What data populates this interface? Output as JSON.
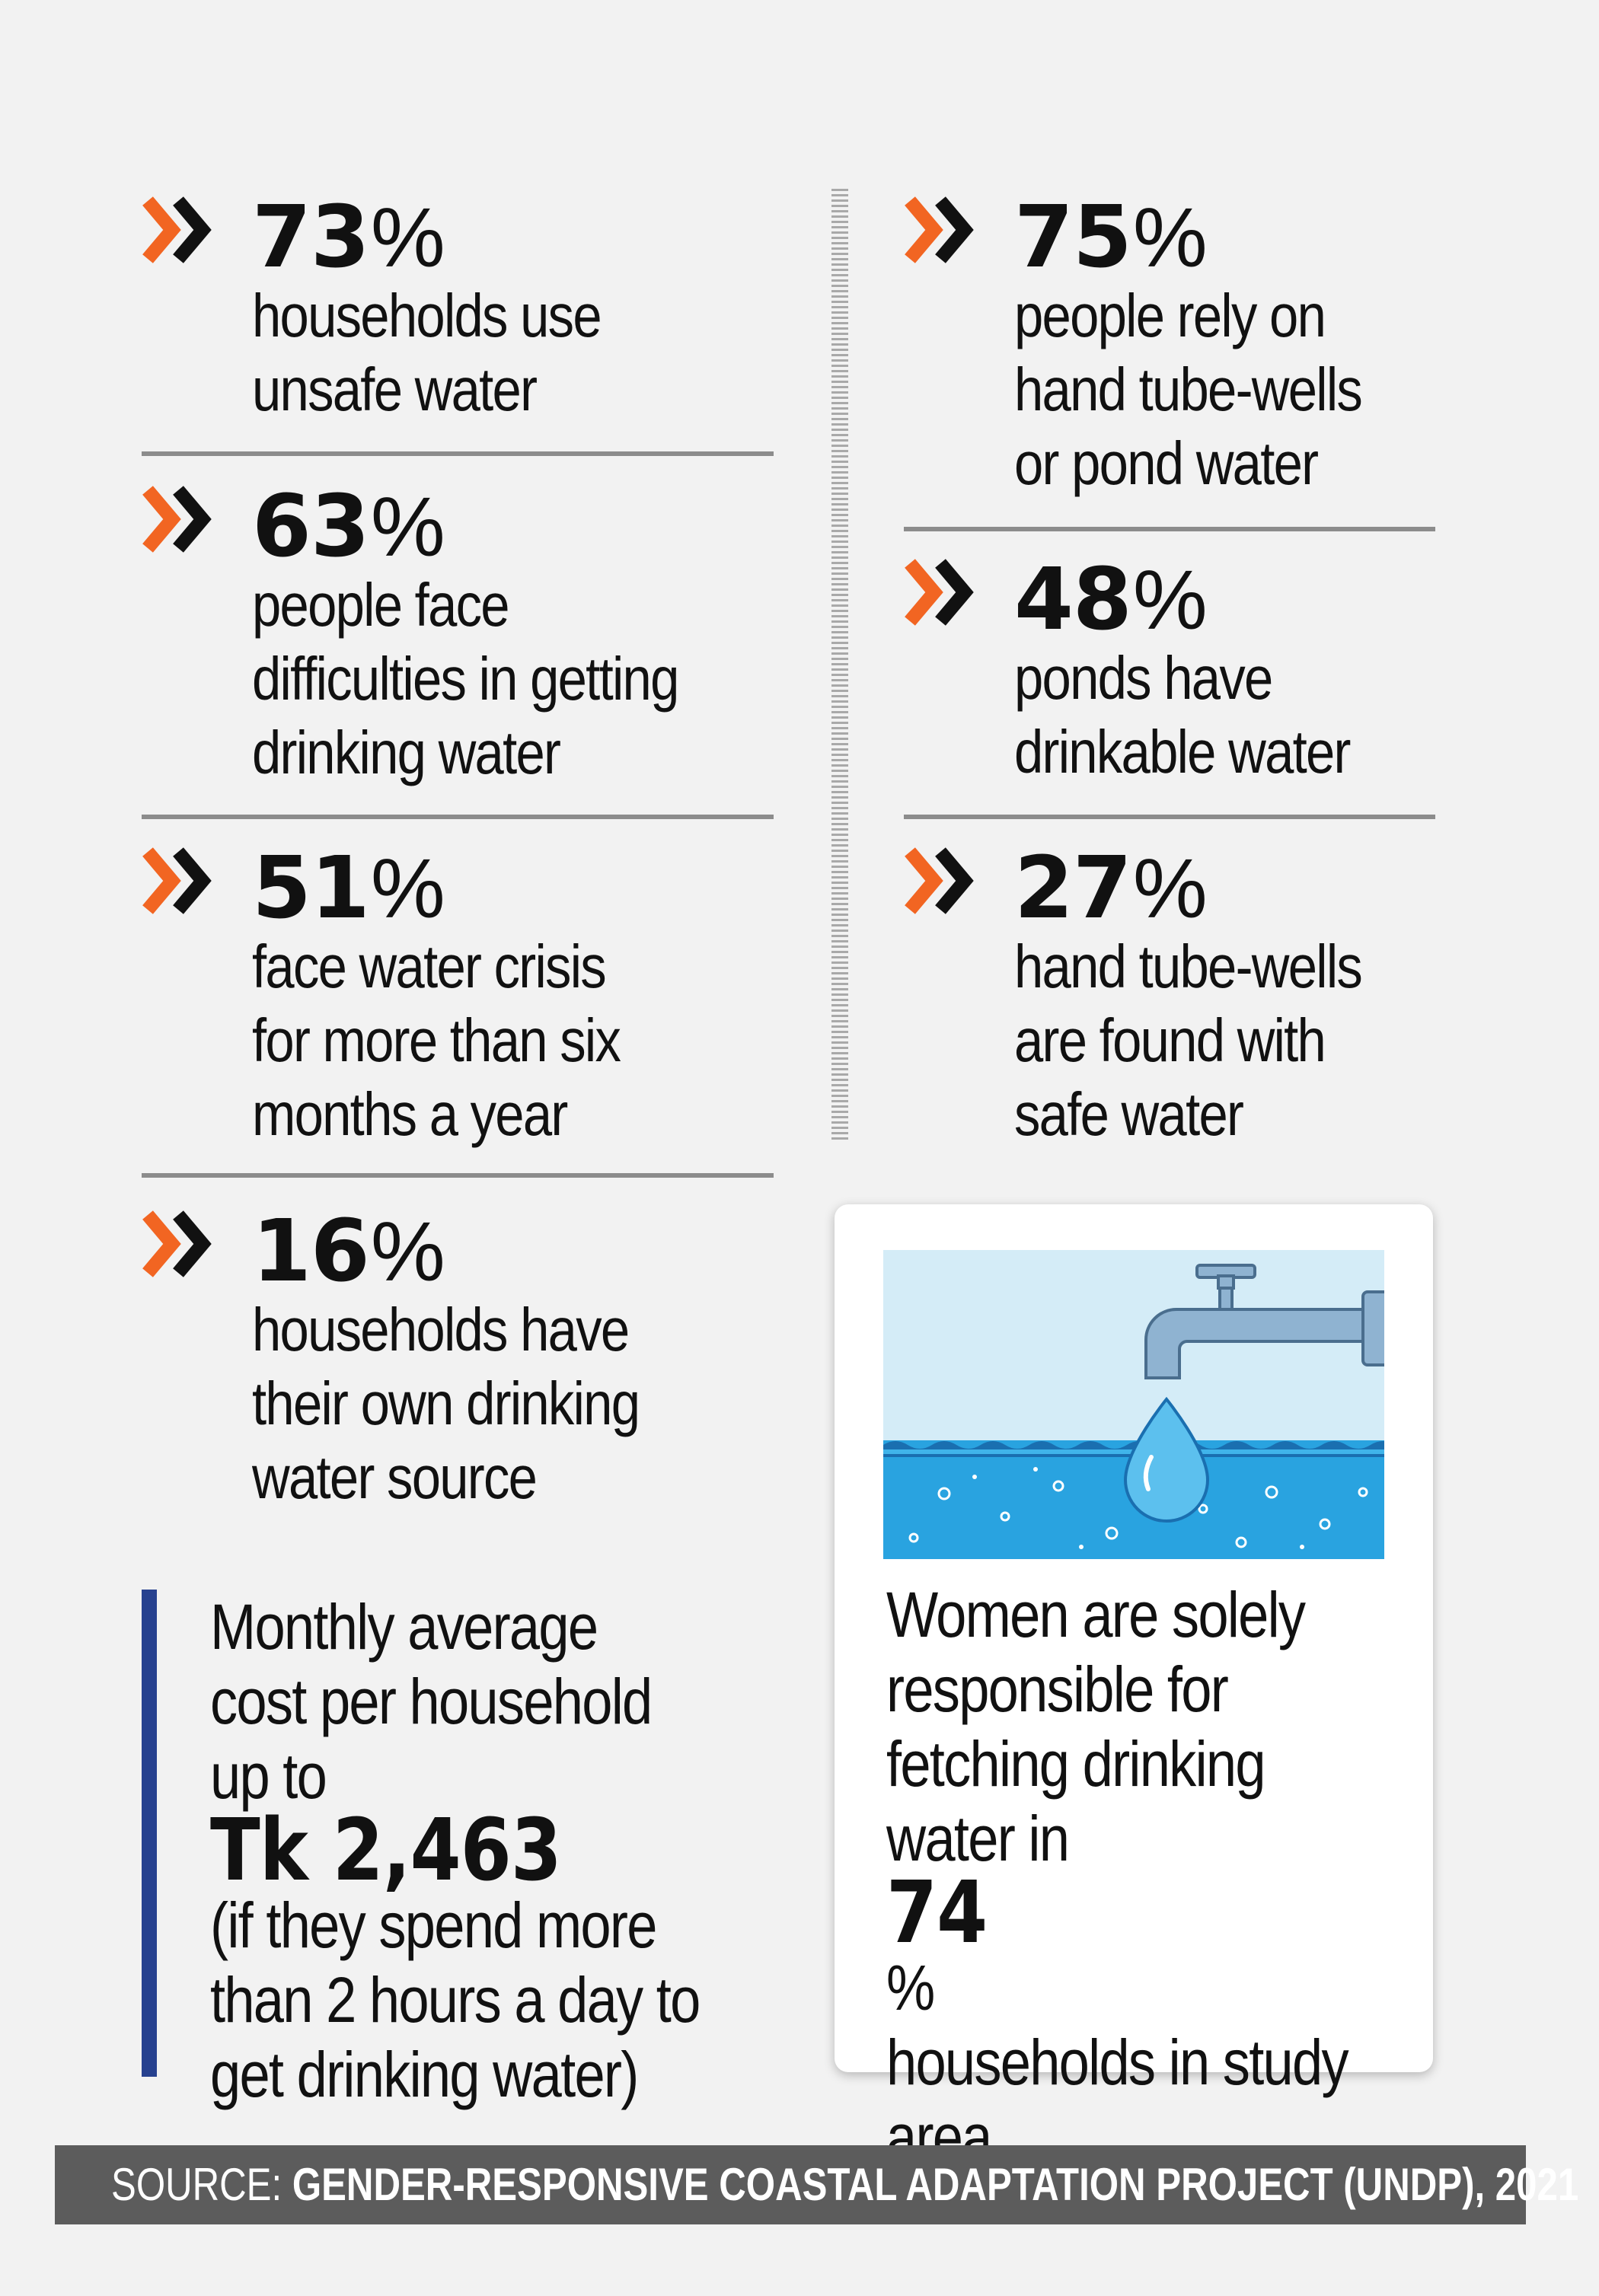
{
  "stats_left": [
    {
      "value": "73",
      "unit": "%",
      "lines": [
        "households use",
        "unsafe water"
      ]
    },
    {
      "value": "63",
      "unit": "%",
      "lines": [
        "people face",
        "difficulties in getting",
        "drinking water"
      ]
    },
    {
      "value": "51",
      "unit": "%",
      "lines": [
        "face water crisis",
        "for more than six",
        "months a year"
      ]
    },
    {
      "value": "16",
      "unit": "%",
      "lines": [
        "households have",
        "their own drinking",
        "water source"
      ]
    }
  ],
  "stats_right": [
    {
      "value": "75",
      "unit": "%",
      "lines": [
        "people rely on",
        "hand tube-wells",
        "or pond water"
      ]
    },
    {
      "value": "48",
      "unit": "%",
      "lines": [
        "ponds have",
        "drinkable water"
      ]
    },
    {
      "value": "27",
      "unit": "%",
      "lines": [
        "hand tube-wells",
        "are found with",
        "safe water"
      ]
    }
  ],
  "cost": {
    "line1": "Monthly average",
    "line2": "cost per household",
    "prefix": "up to ",
    "amount": "Tk 2,463",
    "line4": "(if they spend more",
    "line5": "than 2 hours a day to",
    "line6": "get drinking water)"
  },
  "women": {
    "line1": "Women are solely",
    "line2": "responsible for",
    "line3": "fetching drinking",
    "line4_prefix": "water in ",
    "value": "74",
    "unit": "%",
    "line5": "households in study",
    "line6": "area"
  },
  "source": {
    "label": "SOURCE: ",
    "text": "GENDER-RESPONSIVE COASTAL ADAPTATION PROJECT (UNDP), 2021"
  },
  "colors": {
    "accent": "#f26522",
    "chevron_dark": "#111111",
    "divider": "#8c8c8c",
    "cost_bar": "#27418f",
    "source_bg": "#5c5c5c",
    "water": "#29a3e0",
    "sky": "#d4ecf7",
    "faucet": "#8fb3d1"
  },
  "icons": {
    "bullet": "double-chevron-icon",
    "illustration": "faucet-water-drop-icon"
  }
}
